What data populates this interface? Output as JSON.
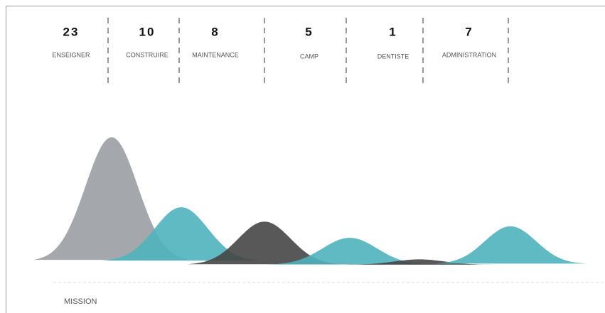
{
  "chart_data": {
    "type": "bell",
    "categories": [
      "ENSEIGNER",
      "CONSTRUIRE",
      "MAINTENANCE",
      "CAMP",
      "DENTISTE",
      "ADMINISTRATION"
    ],
    "values": [
      23,
      10,
      8,
      5,
      1,
      7
    ],
    "colors": [
      "#9a9ea3",
      "#4fb3be",
      "#464646",
      "#4fb3be",
      "#464646",
      "#4fb3be"
    ],
    "ylim": [
      0,
      25
    ],
    "footer": "MISSION"
  }
}
